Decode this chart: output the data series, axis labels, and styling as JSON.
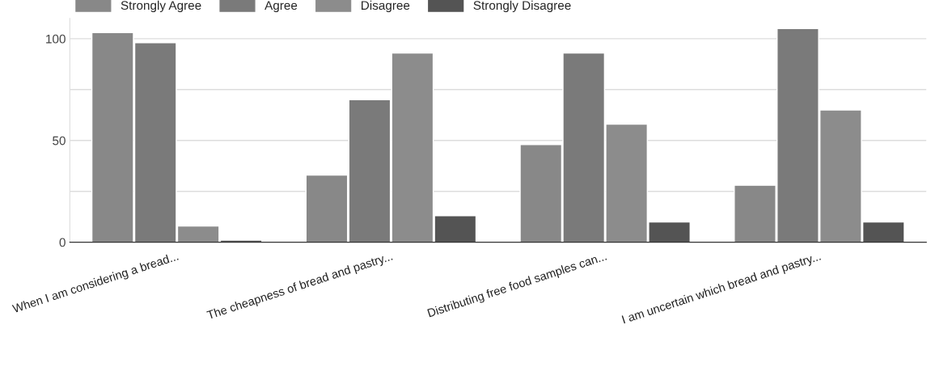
{
  "chart_data": {
    "type": "bar",
    "categories": [
      "When I am considering a bread...",
      "The cheapness of bread and pastry...",
      "Distributing free food samples can...",
      "I am uncertain which bread and pastry..."
    ],
    "series": [
      {
        "name": "Strongly Agree",
        "color": "#888888",
        "values": [
          103,
          33,
          48,
          28
        ]
      },
      {
        "name": "Agree",
        "color": "#7a7a7a",
        "values": [
          98,
          70,
          93,
          105
        ]
      },
      {
        "name": "Disagree",
        "color": "#8c8c8c",
        "values": [
          8,
          93,
          58,
          65
        ]
      },
      {
        "name": "Strongly Disagree",
        "color": "#545454",
        "values": [
          1,
          13,
          10,
          10
        ]
      }
    ],
    "ylim": [
      0,
      110
    ],
    "yticks": [
      0,
      {
        "value": 25,
        "label": null
      },
      50,
      {
        "value": 75,
        "label": null
      },
      100
    ],
    "grid": "y",
    "legend": "top left"
  }
}
